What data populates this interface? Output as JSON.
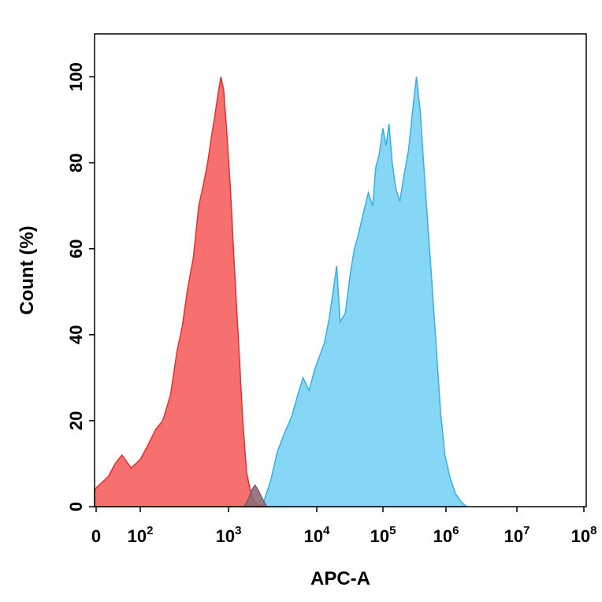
{
  "chart_data": {
    "type": "area",
    "xlabel": "APC-A",
    "ylabel": "Count (%)",
    "xscale": "log (biexponential, 0 at left)",
    "xlim": [
      0,
      100000000
    ],
    "ylim": [
      0,
      110
    ],
    "grid": false,
    "legend": "none",
    "x_ticks": [
      {
        "base": "0",
        "exp": ""
      },
      {
        "base": "10",
        "exp": "2"
      },
      {
        "base": "10",
        "exp": "3"
      },
      {
        "base": "10",
        "exp": "4"
      },
      {
        "base": "10",
        "exp": "5"
      },
      {
        "base": "10",
        "exp": "6"
      },
      {
        "base": "10",
        "exp": "7"
      },
      {
        "base": "10",
        "exp": "8"
      }
    ],
    "y_ticks": [
      "0",
      "20",
      "40",
      "60",
      "80",
      "100"
    ],
    "series": [
      {
        "color": "#f77070",
        "stroke": "#e03030",
        "points": [
          [
            0,
            4
          ],
          [
            10,
            5
          ],
          [
            20,
            6
          ],
          [
            30,
            7
          ],
          [
            45,
            10
          ],
          [
            60,
            12
          ],
          [
            80,
            9
          ],
          [
            100,
            11
          ],
          [
            120,
            14
          ],
          [
            150,
            18
          ],
          [
            180,
            20
          ],
          [
            220,
            26
          ],
          [
            260,
            36
          ],
          [
            300,
            42
          ],
          [
            340,
            50
          ],
          [
            400,
            58
          ],
          [
            460,
            70
          ],
          [
            520,
            75
          ],
          [
            580,
            80
          ],
          [
            640,
            86
          ],
          [
            700,
            91
          ],
          [
            760,
            96
          ],
          [
            820,
            100
          ],
          [
            880,
            97
          ],
          [
            950,
            88
          ],
          [
            1050,
            74
          ],
          [
            1150,
            58
          ],
          [
            1300,
            38
          ],
          [
            1450,
            20
          ],
          [
            1600,
            8
          ],
          [
            1800,
            3
          ],
          [
            2000,
            1
          ],
          [
            2300,
            0
          ]
        ]
      },
      {
        "color": "#86d6f5",
        "stroke": "#3aaee0",
        "points": [
          [
            2400,
            0
          ],
          [
            3000,
            6
          ],
          [
            3600,
            13
          ],
          [
            4300,
            17
          ],
          [
            5200,
            21
          ],
          [
            6300,
            27
          ],
          [
            7000,
            30
          ],
          [
            8200,
            27
          ],
          [
            9500,
            32
          ],
          [
            11000,
            35
          ],
          [
            13000,
            38
          ],
          [
            15500,
            44
          ],
          [
            18000,
            51
          ],
          [
            20000,
            56
          ],
          [
            22500,
            43
          ],
          [
            27000,
            45
          ],
          [
            32000,
            54
          ],
          [
            37000,
            60
          ],
          [
            42000,
            63
          ],
          [
            50000,
            68
          ],
          [
            60000,
            73
          ],
          [
            70000,
            70
          ],
          [
            78000,
            79
          ],
          [
            88000,
            82
          ],
          [
            100000,
            88
          ],
          [
            112000,
            84
          ],
          [
            125000,
            89
          ],
          [
            140000,
            80
          ],
          [
            160000,
            74
          ],
          [
            185000,
            71
          ],
          [
            215000,
            77
          ],
          [
            255000,
            83
          ],
          [
            300000,
            93
          ],
          [
            340000,
            100
          ],
          [
            390000,
            92
          ],
          [
            460000,
            76
          ],
          [
            560000,
            58
          ],
          [
            680000,
            40
          ],
          [
            820000,
            22
          ],
          [
            960000,
            12
          ],
          [
            1130000,
            7
          ],
          [
            1360000,
            3
          ],
          [
            1650000,
            1
          ],
          [
            1950000,
            0
          ]
        ]
      },
      {
        "color": "#8e6a74",
        "stroke": "#7a5a64",
        "points": [
          [
            1500,
            0
          ],
          [
            1700,
            2
          ],
          [
            1850,
            4
          ],
          [
            2000,
            5
          ],
          [
            2150,
            4
          ],
          [
            2400,
            2
          ],
          [
            2700,
            0
          ]
        ]
      }
    ]
  }
}
